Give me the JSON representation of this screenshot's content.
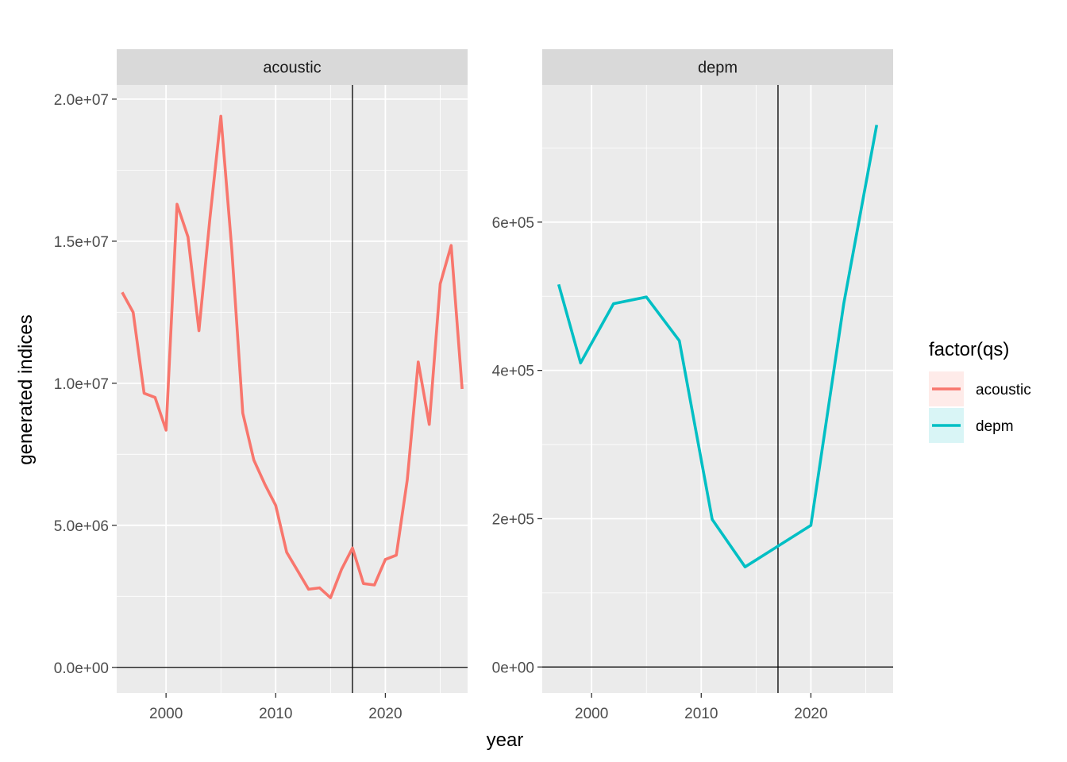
{
  "chart_data": {
    "type": "line",
    "xlabel": "year",
    "ylabel": "generated indices",
    "legend_title": "factor(qs)",
    "legend_position": "right",
    "grid": true,
    "reference_lines": {
      "vline_x": 2017,
      "hline_y": 0
    },
    "panels": [
      {
        "strip": "acoustic",
        "color": "#F8766D",
        "xlim": [
          1995.5,
          2027.5
        ],
        "ylim": [
          -900000,
          20500000
        ],
        "x_ticks": [
          2000,
          2010,
          2020
        ],
        "x_tick_labels": [
          "2000",
          "2010",
          "2020"
        ],
        "y_ticks": [
          0,
          5000000,
          10000000,
          15000000,
          20000000
        ],
        "y_tick_labels": [
          "0.0e+00",
          "5.0e+06",
          "1.0e+07",
          "1.5e+07",
          "2.0e+07"
        ],
        "series": {
          "name": "acoustic",
          "x": [
            1996,
            1997,
            1998,
            1999,
            2000,
            2001,
            2002,
            2003,
            2004,
            2005,
            2006,
            2007,
            2008,
            2009,
            2010,
            2011,
            2012,
            2013,
            2014,
            2015,
            2016,
            2017,
            2018,
            2019,
            2020,
            2021,
            2022,
            2023,
            2024,
            2025,
            2026,
            2027
          ],
          "y": [
            13200000,
            12500000,
            9650000,
            9500000,
            8350000,
            16300000,
            15150000,
            11850000,
            15800000,
            19400000,
            14700000,
            8950000,
            7300000,
            6450000,
            5700000,
            4050000,
            3400000,
            2750000,
            2800000,
            2450000,
            3450000,
            4200000,
            2950000,
            2900000,
            3800000,
            3950000,
            6600000,
            10750000,
            8550000,
            13500000,
            14850000,
            9800000
          ]
        }
      },
      {
        "strip": "depm",
        "color": "#00BFC4",
        "xlim": [
          1995.5,
          2027.5
        ],
        "ylim": [
          -35000,
          785000
        ],
        "x_ticks": [
          2000,
          2010,
          2020
        ],
        "x_tick_labels": [
          "2000",
          "2010",
          "2020"
        ],
        "y_ticks": [
          0,
          200000,
          400000,
          600000
        ],
        "y_tick_labels": [
          "0e+00",
          "2e+05",
          "4e+05",
          "6e+05"
        ],
        "series": {
          "name": "depm",
          "x": [
            1997,
            1999,
            2002,
            2005,
            2008,
            2011,
            2014,
            2017,
            2020,
            2023,
            2026
          ],
          "y": [
            516000,
            410000,
            490000,
            499000,
            440000,
            199000,
            135000,
            163000,
            191000,
            490000,
            731000
          ]
        }
      }
    ],
    "legend": [
      {
        "label": "acoustic",
        "color": "#F8766D"
      },
      {
        "label": "depm",
        "color": "#00BFC4"
      }
    ]
  }
}
